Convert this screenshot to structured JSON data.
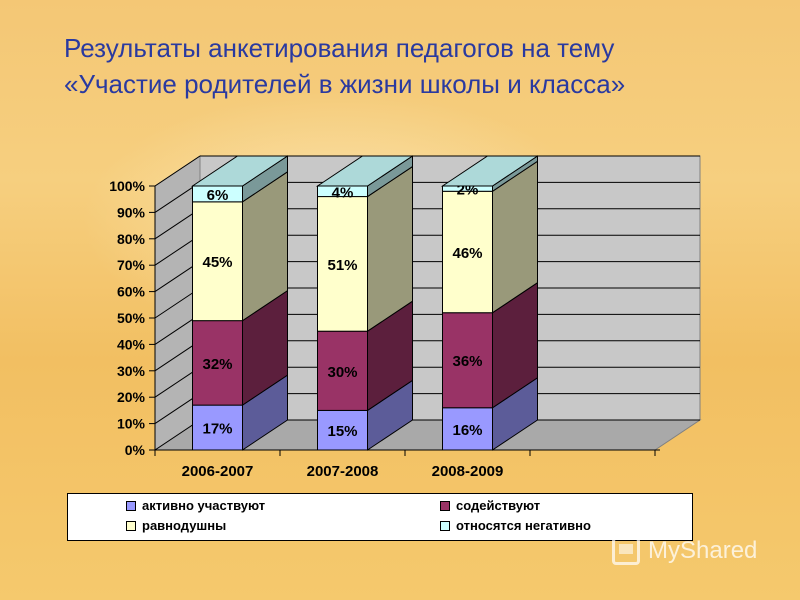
{
  "slide": {
    "title_line1": "Результаты анкетирования педагогов на тему",
    "title_line2": "«Участие родителей в жизни школы и класса»"
  },
  "chart_data": {
    "type": "bar",
    "stacked": true,
    "three_d": true,
    "categories": [
      "2006-2007",
      "2007-2008",
      "2008-2009"
    ],
    "series": [
      {
        "name": "активно участвуют",
        "values": [
          17,
          15,
          16
        ],
        "labels": [
          "17%",
          "15%",
          "16%"
        ],
        "color": "#9999ff"
      },
      {
        "name": "содействуют",
        "values": [
          32,
          30,
          36
        ],
        "labels": [
          "32%",
          "30%",
          "36%"
        ],
        "color": "#993366"
      },
      {
        "name": "равнодушны",
        "values": [
          45,
          51,
          46
        ],
        "labels": [
          "45%",
          "51%",
          "46%"
        ],
        "color": "#ffffcc"
      },
      {
        "name": "относятся негативно",
        "values": [
          6,
          4,
          2
        ],
        "labels": [
          "6%",
          "4%",
          "2%"
        ],
        "color": "#ccffff"
      }
    ],
    "ylim": [
      0,
      100
    ],
    "yticks": [
      "0%",
      "10%",
      "20%",
      "30%",
      "40%",
      "50%",
      "60%",
      "70%",
      "80%",
      "90%",
      "100%"
    ],
    "grid": true,
    "legend_position": "bottom",
    "xlabel": "",
    "ylabel": ""
  },
  "watermark": {
    "text": "MyShared"
  }
}
